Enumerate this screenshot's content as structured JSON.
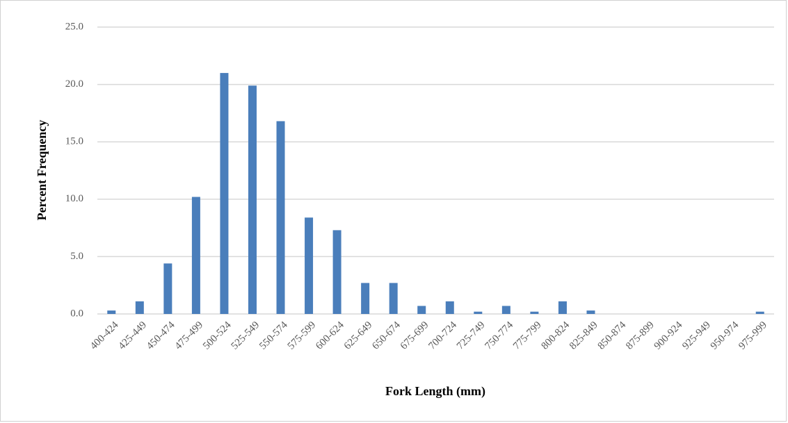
{
  "chart_data": {
    "type": "bar",
    "x_label": "Fork Length (mm)",
    "y_label": "Percent Frequency",
    "categories": [
      "400-424",
      "425-449",
      "450-474",
      "475-499",
      "500-524",
      "525-549",
      "550-574",
      "575-599",
      "600-624",
      "625-649",
      "650-674",
      "675-699",
      "700-724",
      "725-749",
      "750-774",
      "775-799",
      "800-824",
      "825-849",
      "850-874",
      "875-899",
      "900-924",
      "925-949",
      "950-974",
      "975-999"
    ],
    "values": [
      0.3,
      1.1,
      4.4,
      10.2,
      21.0,
      19.9,
      16.8,
      8.4,
      7.3,
      2.7,
      2.7,
      0.7,
      1.1,
      0.2,
      0.7,
      0.2,
      1.1,
      0.3,
      0,
      0,
      0,
      0,
      0,
      0.2
    ],
    "color": "#4a7ebb",
    "ylim": [
      0,
      25
    ],
    "yticks": [
      {
        "value": 0,
        "label": "0.0"
      },
      {
        "value": 5,
        "label": "5.0"
      },
      {
        "value": 10,
        "label": "10.0"
      },
      {
        "value": 15,
        "label": "15.0"
      },
      {
        "value": 20,
        "label": "20.0"
      },
      {
        "value": 25,
        "label": "25.0"
      }
    ],
    "grid": true
  }
}
